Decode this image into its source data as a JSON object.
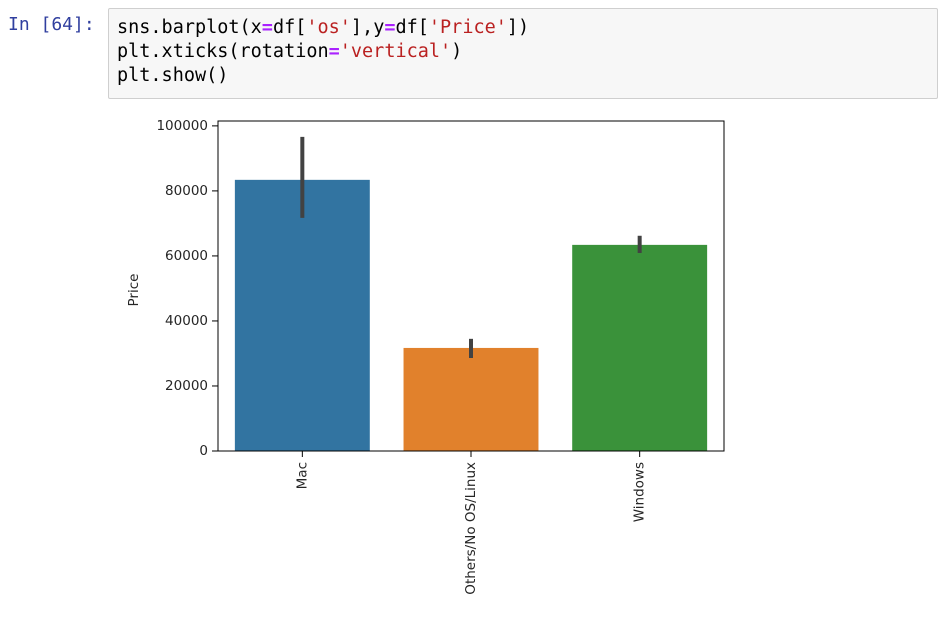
{
  "prompt": "In [64]:",
  "code": [
    "sns.barplot(x=df['os'],y=df['Price'])",
    "plt.xticks(rotation='vertical')",
    "plt.show()"
  ],
  "chart_data": {
    "type": "bar",
    "y_label": "Price",
    "categories": [
      "Mac",
      "Others/No OS/Linux",
      "Windows"
    ],
    "values": [
      83400,
      31700,
      63400
    ],
    "ci_low": [
      71700,
      28600,
      60900
    ],
    "ci_high": [
      96600,
      34500,
      66200
    ],
    "colors": [
      "#3274a1",
      "#e1812c",
      "#3a923a"
    ],
    "errorbar_color": "#424242",
    "ylim": [
      0,
      101500
    ],
    "yticks": [
      0,
      20000,
      40000,
      60000,
      80000,
      100000
    ],
    "grid": false
  }
}
